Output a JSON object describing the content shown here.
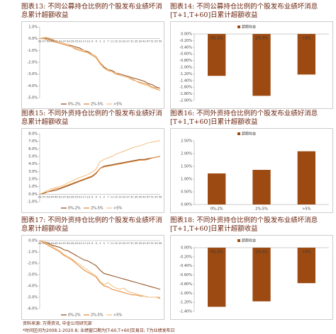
{
  "chart_data": [
    {
      "type": "line",
      "title": "图表13: 不同公募持仓比例的个股发布业绩坏消息累计超额收益",
      "x": [
        -61,
        -57,
        -53,
        -49,
        -45,
        -41,
        -37,
        -33,
        -29,
        -25,
        -21,
        -17,
        -13,
        -9,
        -5,
        -1,
        3,
        7,
        11,
        15,
        19,
        23,
        27,
        31,
        35,
        39,
        43,
        47,
        51,
        55,
        59
      ],
      "xlim": [
        -61,
        59
      ],
      "ylim": [
        -5,
        1
      ],
      "yticks": [
        {
          "value": 1,
          "label": "1.0%"
        },
        {
          "value": 0,
          "label": "0.0%"
        },
        {
          "value": -1,
          "label": "-1.0%"
        },
        {
          "value": -2,
          "label": "-2.0%"
        },
        {
          "value": -3,
          "label": "-3.0%"
        },
        {
          "value": -4,
          "label": "-4.0%"
        },
        {
          "value": -5,
          "label": "-5.0%"
        }
      ],
      "legend": "bottom",
      "series": [
        {
          "name": "0%-2%",
          "color": "#8b4513",
          "values": [
            0,
            0.1,
            0,
            -0.1,
            -0.2,
            -0.3,
            -0.4,
            -0.5,
            -0.6,
            -0.7,
            -0.8,
            -1.0,
            -1.1,
            -1.3,
            -1.5,
            -2.0,
            -2.4,
            -2.6,
            -2.7,
            -2.9,
            -3.0,
            -3.1,
            -3.2,
            -3.3,
            -3.4,
            -3.5,
            -3.6,
            -3.8,
            -3.9,
            -4.1,
            -4.2
          ]
        },
        {
          "name": "2%-5%",
          "color": "#e0822a",
          "values": [
            0,
            0,
            -0.1,
            -0.2,
            -0.3,
            -0.4,
            -0.5,
            -0.6,
            -0.7,
            -0.9,
            -1.0,
            -1.1,
            -1.2,
            -1.4,
            -1.6,
            -2.1,
            -2.5,
            -2.7,
            -2.8,
            -3.0,
            -3.1,
            -3.2,
            -3.3,
            -3.4,
            -3.6,
            -3.7,
            -3.8,
            -3.9,
            -4.1,
            -4.2,
            -4.4
          ]
        },
        {
          "name": ">5%",
          "color": "#f2be82",
          "values": [
            0,
            0.1,
            0.1,
            0,
            -0.2,
            -0.3,
            -0.4,
            -0.5,
            -0.7,
            -0.8,
            -0.9,
            -1.0,
            -1.2,
            -1.3,
            -1.5,
            -2.0,
            -2.5,
            -2.6,
            -2.8,
            -2.9,
            -3.1,
            -3.2,
            -3.3,
            -3.5,
            -3.6,
            -3.8,
            -3.9,
            -4.0,
            -4.2,
            -4.3,
            -4.4
          ]
        }
      ]
    },
    {
      "type": "bar",
      "title": "图表14: 不同公募持仓比例的个股发布业绩坏消息[T+1,T+60]日累计超额收益",
      "categories": [
        "0%-2%",
        "2%-5%",
        ">5%"
      ],
      "series": [
        {
          "name": "超额收益",
          "color": "#9c4a12",
          "values": [
            -1.26,
            -1.86,
            -1.22
          ]
        }
      ],
      "ylim": [
        -2,
        0
      ],
      "yticks": [
        {
          "value": 0,
          "label": "0.00%"
        },
        {
          "value": -0.2,
          "label": "-0.20%"
        },
        {
          "value": -0.4,
          "label": "-0.40%"
        },
        {
          "value": -0.6,
          "label": "-0.60%"
        },
        {
          "value": -0.8,
          "label": "-0.80%"
        },
        {
          "value": -1,
          "label": "-1.00%"
        },
        {
          "value": -1.2,
          "label": "-1.20%"
        },
        {
          "value": -1.4,
          "label": "-1.40%"
        },
        {
          "value": -1.6,
          "label": "-1.60%"
        },
        {
          "value": -1.8,
          "label": "-1.80%"
        },
        {
          "value": -2,
          "label": "-2.00%"
        }
      ],
      "legend": "top"
    },
    {
      "type": "line",
      "title": "图表15: 不同外资持仓比例的个股发布业绩好消息累计超额收益",
      "x": [
        -61,
        -57,
        -53,
        -49,
        -45,
        -41,
        -37,
        -33,
        -29,
        -25,
        -21,
        -17,
        -13,
        -9,
        -5,
        -1,
        3,
        7,
        11,
        15,
        19,
        23,
        27,
        31,
        35,
        39,
        43,
        47,
        51,
        55,
        59
      ],
      "xlim": [
        -61,
        59
      ],
      "ylim": [
        -1,
        8
      ],
      "yticks": [
        {
          "value": 8,
          "label": "8.0%"
        },
        {
          "value": 7,
          "label": "7.0%"
        },
        {
          "value": 6,
          "label": "6.0%"
        },
        {
          "value": 5,
          "label": "5.0%"
        },
        {
          "value": 4,
          "label": "4.0%"
        },
        {
          "value": 3,
          "label": "3.0%"
        },
        {
          "value": 2,
          "label": "2.0%"
        },
        {
          "value": 1,
          "label": "1.0%"
        },
        {
          "value": 0,
          "label": "0.0%"
        },
        {
          "value": -1,
          "label": "-1.0%"
        }
      ],
      "legend": "bottom",
      "series": [
        {
          "name": "0%-2%",
          "color": "#8b4513",
          "values": [
            0,
            0.1,
            0.3,
            0.4,
            0.5,
            0.7,
            0.9,
            1.1,
            1.3,
            1.5,
            1.7,
            1.9,
            2.1,
            2.3,
            2.7,
            3.4,
            3.7,
            3.8,
            3.9,
            4.0,
            4.1,
            4.2,
            4.3,
            4.4,
            4.5,
            4.6,
            4.6,
            4.7,
            4.8,
            4.9,
            5.0
          ]
        },
        {
          "name": "2%-5%",
          "color": "#e0822a",
          "values": [
            0,
            0.2,
            0.3,
            0.5,
            0.7,
            0.8,
            1.0,
            1.2,
            1.4,
            1.6,
            1.8,
            2.0,
            2.2,
            2.4,
            2.8,
            3.4,
            3.6,
            3.7,
            3.8,
            3.9,
            4.0,
            4.1,
            4.2,
            4.3,
            4.4,
            4.5,
            4.5,
            4.6,
            4.8,
            4.9,
            5.0
          ]
        },
        {
          "name": ">5%",
          "color": "#f2be82",
          "values": [
            0,
            0.2,
            0.5,
            0.7,
            0.9,
            1.0,
            1.2,
            1.5,
            1.7,
            2.0,
            2.2,
            2.4,
            2.6,
            2.9,
            3.3,
            4.3,
            4.6,
            4.8,
            5.0,
            5.3,
            5.5,
            5.7,
            5.9,
            6.1,
            6.3,
            6.4,
            6.6,
            6.8,
            6.9,
            7.0,
            7.1
          ]
        }
      ]
    },
    {
      "type": "bar",
      "title": "图表16: 不同外资持仓比例的个股发布业绩好消息[T+1,T+60]日累计超额收益",
      "categories": [
        "0%-2%",
        "2%-5%",
        ">5%"
      ],
      "series": [
        {
          "name": "超额收益",
          "color": "#9c4a12",
          "values": [
            1.22,
            1.36,
            2.09
          ]
        }
      ],
      "ylim": [
        0,
        2.5
      ],
      "yticks": [
        {
          "value": 2.5,
          "label": "2.50%"
        },
        {
          "value": 2,
          "label": "2.00%"
        },
        {
          "value": 1.5,
          "label": "1.50%"
        },
        {
          "value": 1,
          "label": "1.00%"
        },
        {
          "value": 0.5,
          "label": "0.50%"
        },
        {
          "value": 0,
          "label": "0.00%"
        }
      ],
      "legend": "top"
    },
    {
      "type": "line",
      "title": "图表17: 不同外资持仓比例的个股发布业绩坏消息累计超额收益",
      "x": [
        -61,
        -57,
        -53,
        -49,
        -45,
        -41,
        -37,
        -33,
        -29,
        -25,
        -21,
        -17,
        -13,
        -9,
        -5,
        -1,
        3,
        7,
        11,
        15,
        19,
        23,
        27,
        31,
        35,
        39,
        43,
        47,
        51,
        55,
        59
      ],
      "xlim": [
        -61,
        59
      ],
      "ylim": [
        -6,
        0
      ],
      "yticks": [
        {
          "value": 0,
          "label": "0.0%"
        },
        {
          "value": -1,
          "label": "-1.0%"
        },
        {
          "value": -2,
          "label": "-2.0%"
        },
        {
          "value": -3,
          "label": "-3.0%"
        },
        {
          "value": -4,
          "label": "-4.0%"
        },
        {
          "value": -5,
          "label": "-5.0%"
        },
        {
          "value": -6,
          "label": "-6.0%"
        }
      ],
      "legend": "bottom",
      "series": [
        {
          "name": "0%-2%",
          "color": "#8b4513",
          "values": [
            0,
            -0.1,
            -0.2,
            -0.4,
            -0.5,
            -0.6,
            -0.8,
            -0.9,
            -1.1,
            -1.3,
            -1.5,
            -1.7,
            -1.8,
            -2.0,
            -2.2,
            -2.6,
            -2.9,
            -3.0,
            -3.1,
            -3.2,
            -3.3,
            -3.4,
            -3.5,
            -3.6,
            -3.7,
            -3.8,
            -3.9,
            -4.0,
            -4.1,
            -4.2,
            -4.3
          ]
        },
        {
          "name": "2%-5%",
          "color": "#e0822a",
          "values": [
            0,
            -0.2,
            -0.4,
            -0.6,
            -0.8,
            -1.0,
            -1.3,
            -1.5,
            -1.7,
            -2.0,
            -2.3,
            -2.6,
            -2.8,
            -3.0,
            -3.2,
            -3.7,
            -4.0,
            -4.1,
            -4.3,
            -4.4,
            -4.5,
            -4.6,
            -4.7,
            -4.8,
            -4.8,
            -4.9,
            -4.9,
            -5.0,
            -5.0,
            -5.0,
            -5.1
          ]
        },
        {
          "name": ">5%",
          "color": "#f2be82",
          "values": [
            0,
            -0.1,
            -0.3,
            -0.5,
            -0.7,
            -0.9,
            -1.2,
            -1.4,
            -1.6,
            -1.9,
            -2.1,
            -2.4,
            -2.6,
            -2.9,
            -3.1,
            -3.6,
            -3.9,
            -3.7,
            -4.0,
            -4.2,
            -4.3,
            -4.2,
            -4.5,
            -4.6,
            -4.7,
            -4.8,
            -4.9,
            -5.0,
            -5.0,
            -5.0,
            -5.0
          ]
        }
      ]
    },
    {
      "type": "bar",
      "title": "图表18: 不同外资持仓比例的个股发布业绩坏消息[T+1,T+60]日累计超额收益",
      "categories": [
        "0%-2%",
        "2%-5%",
        ">5%"
      ],
      "series": [
        {
          "name": "超额收益",
          "color": "#9c4a12",
          "values": [
            -1.3,
            -1.18,
            -0.78
          ]
        }
      ],
      "ylim": [
        -1.4,
        0
      ],
      "yticks": [
        {
          "value": 0,
          "label": "0.00%"
        },
        {
          "value": -0.2,
          "label": "-0.20%"
        },
        {
          "value": -0.4,
          "label": "-0.40%"
        },
        {
          "value": -0.6,
          "label": "-0.60%"
        },
        {
          "value": -0.8,
          "label": "-0.80%"
        },
        {
          "value": -1,
          "label": "-1.00%"
        },
        {
          "value": -1.2,
          "label": "-1.20%"
        },
        {
          "value": -1.4,
          "label": "-1.40%"
        }
      ],
      "legend": "top"
    }
  ],
  "footer": {
    "source": "资料来源: 万得资讯, 中金公司研究部",
    "note": "*时间区间为2008.1-2020.8; 业绩窗口期为[T-60,T+60]交易日; T为业绩发布日"
  }
}
